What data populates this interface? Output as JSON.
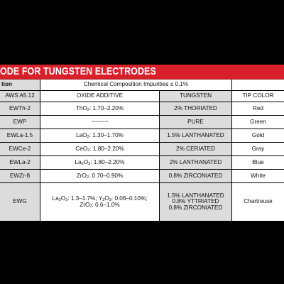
{
  "title": "ODE FOR TUNGSTEN ELECTRODES",
  "header1": {
    "col0": "tion",
    "col1": "Chemical Composition Impurities ≤ 0.1%"
  },
  "header2": {
    "col0": "AWS A5.12",
    "col1": "OXIDE ADDITIVE",
    "col2": "TUNGSTEN",
    "col3": "TIP COLOR"
  },
  "rows": [
    {
      "aws": "EWTh-2",
      "oxide_formula": "ThO",
      "oxide_sub": "2",
      "oxide_value": ": 1.70–2.20%",
      "tungsten": "2% THORIATED",
      "tip_color": "Red"
    },
    {
      "aws": "EWP",
      "oxide_formula": "~~~~~",
      "oxide_sub": "",
      "oxide_value": "",
      "tungsten": "PURE",
      "tip_color": "Green"
    },
    {
      "aws": "EWLa-1.5",
      "oxide_formula": "LaO",
      "oxide_sub": "2",
      "oxide_value": ": 1.30–1.70%",
      "tungsten": "1.5% LANTHANATED",
      "tip_color": "Gold"
    },
    {
      "aws": "EWCe-2",
      "oxide_formula": "CeO",
      "oxide_sub": "2",
      "oxide_value": ": 1.80–2.20%",
      "tungsten": "2% CERIATED",
      "tip_color": "Gray"
    },
    {
      "aws": "EWLa-2",
      "oxide_formula": "La",
      "oxide_sub": "2",
      "oxide_formula_b": "O",
      "oxide_sub_b": "3",
      "oxide_value": ": 1.80–2.20%",
      "tungsten": "2% LANTHANATED",
      "tip_color": "Blue"
    },
    {
      "aws": "EWZr-8",
      "oxide_formula": "ZrO",
      "oxide_sub": "2",
      "oxide_value": ": 0.70–0.90%",
      "tungsten": "0.8% ZIRCONIATED",
      "tip_color": "White"
    }
  ],
  "ewg": {
    "aws": "EWG",
    "line1": {
      "a": "La",
      "a_sub": "2",
      "b": "O",
      "b_sub": "3",
      "c": ": 1.3–1.7%; Y",
      "c_sub": "2",
      "d": "O",
      "d_sub": "3",
      "e": ": 0.06–0.10%;"
    },
    "line2": {
      "a": "ZrO",
      "a_sub": "2",
      "b": ": 0.6–1.0%"
    },
    "tungsten": [
      "1.5% LANTHANATED",
      "0.8% YTTRIATED",
      "0.8% ZIRCONIATED"
    ],
    "tip_color": "Chartreuse"
  },
  "colors": {
    "title_bar": "#d8202a",
    "shaded_cell": "#dcdcdc",
    "background": "#000000"
  }
}
